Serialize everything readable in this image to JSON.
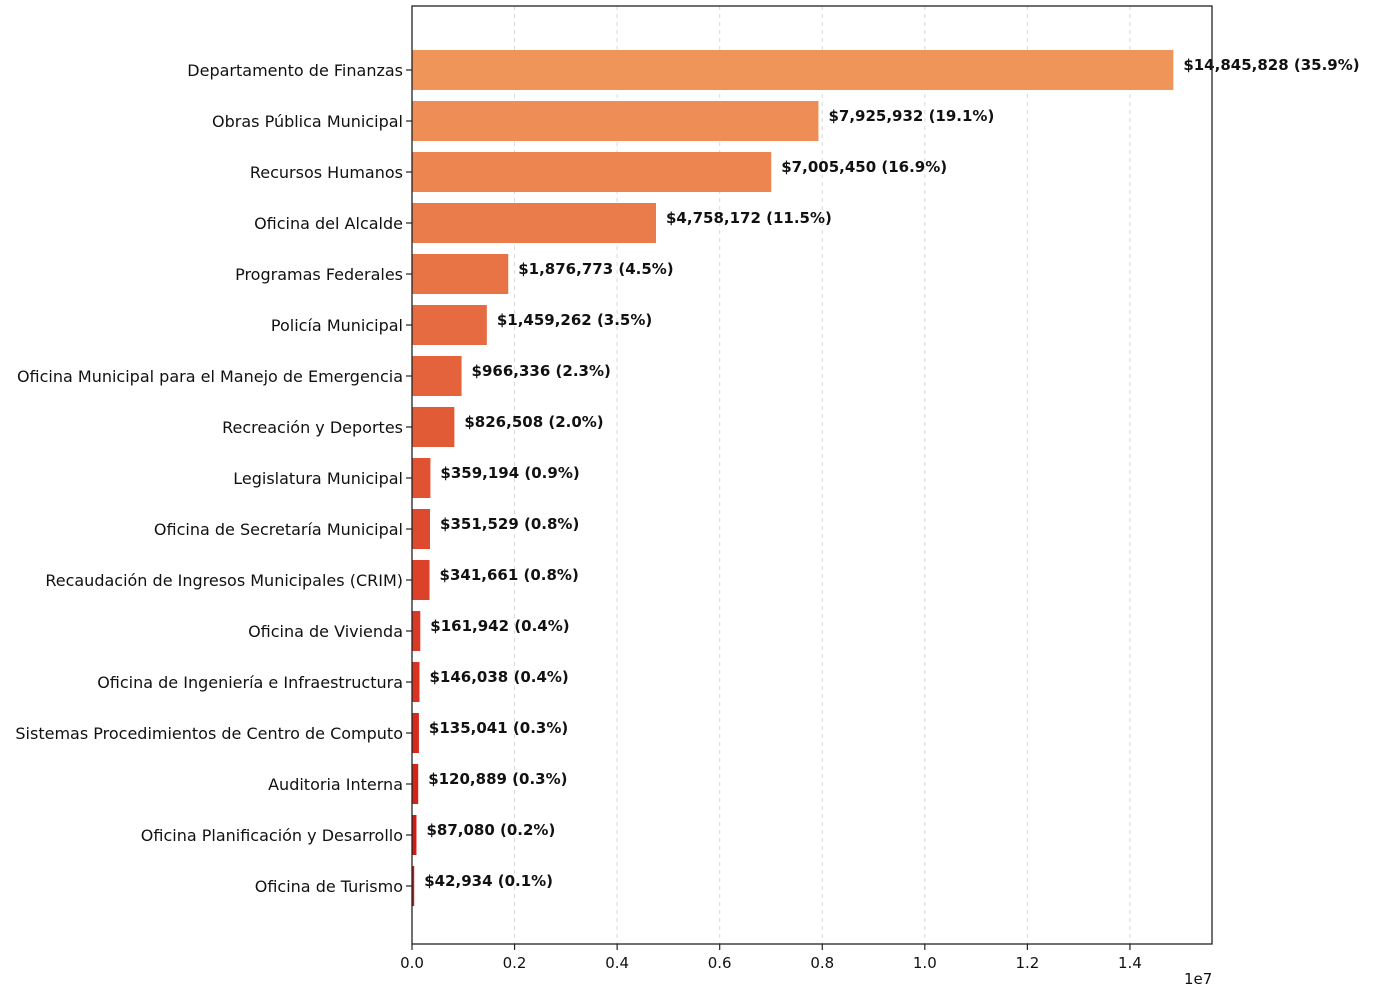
{
  "chart_data": {
    "type": "bar",
    "orientation": "horizontal",
    "categories": [
      "Departamento de Finanzas",
      "Obras Pública Municipal",
      "Recursos Humanos",
      "Oficina del Alcalde",
      "Programas Federales",
      "Policía Municipal",
      "Oficina Municipal para el Manejo de Emergencia",
      "Recreación y Deportes",
      "Legislatura Municipal",
      "Oficina de Secretaría Municipal",
      "Recaudación de Ingresos Municipales (CRIM)",
      "Oficina de Vivienda",
      "Oficina de Ingeniería e Infraestructura",
      "Sistemas Procedimientos de Centro de Computo",
      "Auditoria Interna",
      "Oficina Planificación y Desarrollo",
      "Oficina de Turismo"
    ],
    "values": [
      14845828,
      7925932,
      7005450,
      4758172,
      1876773,
      1459262,
      966336,
      826508,
      359194,
      351529,
      341661,
      161942,
      146038,
      135041,
      120889,
      87080,
      42934
    ],
    "data_labels": [
      "$14,845,828 (35.9%)",
      "$7,925,932 (19.1%)",
      "$7,005,450 (16.9%)",
      "$4,758,172 (11.5%)",
      "$1,876,773 (4.5%)",
      "$1,459,262 (3.5%)",
      "$966,336 (2.3%)",
      "$826,508 (2.0%)",
      "$359,194 (0.9%)",
      "$351,529 (0.8%)",
      "$341,661 (0.8%)",
      "$161,942 (0.4%)",
      "$146,038 (0.4%)",
      "$135,041 (0.3%)",
      "$120,889 (0.3%)",
      "$87,080 (0.2%)",
      "$42,934 (0.1%)"
    ],
    "colors": [
      "#f0955a",
      "#ee8d55",
      "#ec8550",
      "#ea7c4b",
      "#e87446",
      "#e66b41",
      "#e4633c",
      "#e25b37",
      "#e05232",
      "#de4a2e",
      "#dc4229",
      "#da3a25",
      "#d83220",
      "#d62a1c",
      "#d42318",
      "#d21b14",
      "#d01410"
    ],
    "xlim": [
      0,
      15600000
    ],
    "xticks": [
      0,
      2000000,
      4000000,
      6000000,
      8000000,
      10000000,
      12000000,
      14000000
    ],
    "xtick_labels": [
      "0.0",
      "0.2",
      "0.4",
      "0.6",
      "0.8",
      "1.0",
      "1.2",
      "1.4"
    ],
    "offset_label": "1e7",
    "grid": "vertical-dashed",
    "title": "",
    "xlabel": "",
    "ylabel": ""
  }
}
